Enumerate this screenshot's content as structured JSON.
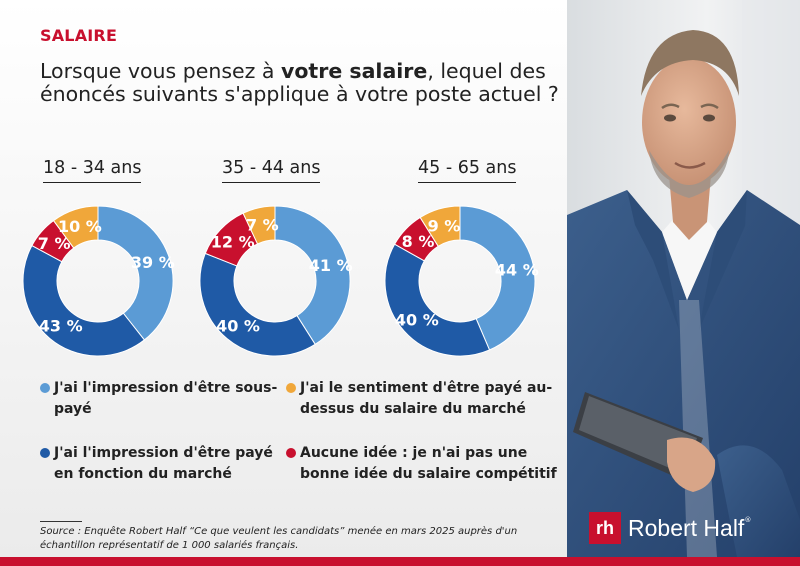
{
  "category": "SALAIRE",
  "question": {
    "before": "Lorsque vous pensez à ",
    "emphasis": "votre salaire",
    "after": ", lequel des énoncés suivants s'applique à votre poste actuel ?"
  },
  "colors": {
    "sous_paye": "#5b9bd5",
    "marche": "#1f5aa6",
    "au_dessus": "#f0a73a",
    "aucune_idee": "#c8102e",
    "brand_red": "#c8102e"
  },
  "chart_data": {
    "type": "pie",
    "variant": "donut",
    "groups": [
      {
        "label": "18 - 34 ans",
        "slices": [
          {
            "key": "sous_paye",
            "value": 39,
            "label": "39 %"
          },
          {
            "key": "marche",
            "value": 43,
            "label": "43 %"
          },
          {
            "key": "aucune_idee",
            "value": 7,
            "label": "7 %"
          },
          {
            "key": "au_dessus",
            "value": 10,
            "label": "10 %"
          }
        ]
      },
      {
        "label": "35 - 44 ans",
        "slices": [
          {
            "key": "sous_paye",
            "value": 41,
            "label": "41 %"
          },
          {
            "key": "marche",
            "value": 40,
            "label": "40 %"
          },
          {
            "key": "aucune_idee",
            "value": 12,
            "label": "12 %"
          },
          {
            "key": "au_dessus",
            "value": 7,
            "label": "7 %"
          }
        ]
      },
      {
        "label": "45 - 65 ans",
        "slices": [
          {
            "key": "sous_paye",
            "value": 44,
            "label": "44 %"
          },
          {
            "key": "marche",
            "value": 40,
            "label": "40 %"
          },
          {
            "key": "aucune_idee",
            "value": 8,
            "label": "8 %"
          },
          {
            "key": "au_dessus",
            "value": 9,
            "label": "9 %"
          }
        ]
      }
    ],
    "legend": [
      {
        "key": "sous_paye",
        "line1": "J'ai l'impression d'être sous-",
        "line2": "payé"
      },
      {
        "key": "au_dessus",
        "line1": "J'ai le sentiment d'être payé au-",
        "line2": "dessus du salaire du marché"
      },
      {
        "key": "marche",
        "line1": "J'ai l'impression d'être payé",
        "line2": "en fonction du marché"
      },
      {
        "key": "aucune_idee",
        "line1": "Aucune idée : je n'ai pas une",
        "line2": "bonne idée du salaire compétitif"
      }
    ]
  },
  "source": "Source : Enquête Robert Half “Ce que veulent les candidats” menée en mars 2025 auprès d'un échantillon représentatif de 1 000 salariés français.",
  "brand": {
    "mark": "rh",
    "name": "Robert Half",
    "reg": "®"
  }
}
